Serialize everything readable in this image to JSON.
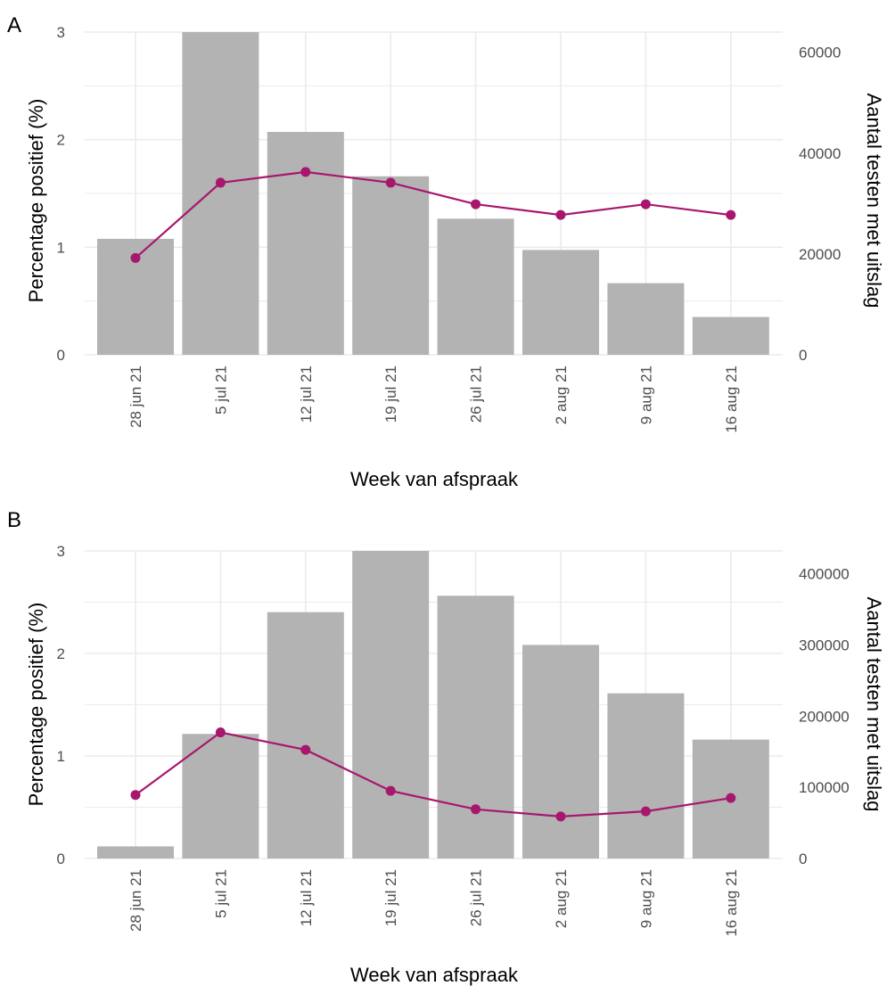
{
  "chart_data": [
    {
      "panel_label": "A",
      "type": "bar+line",
      "categories": [
        "28 jun 21",
        "5 jul 21",
        "12 jul 21",
        "19 jul 21",
        "26 jul 21",
        "2 aug 21",
        "9 aug 21",
        "16 aug 21"
      ],
      "xlabel": "Week van afspraak",
      "ylabel_left": "Percentage positief (%)",
      "ylabel_right": "Aantal testen met uitslag",
      "left_axis": {
        "range": [
          0,
          3
        ],
        "ticks": [
          "0",
          "1",
          "2",
          "3"
        ]
      },
      "right_axis": {
        "range": [
          0,
          64000
        ],
        "ticks": [
          "0",
          "20000",
          "40000",
          "60000"
        ]
      },
      "bars_tests": [
        23000,
        64000,
        44200,
        35400,
        27000,
        20800,
        14200,
        7500
      ],
      "line_percentage_positive": [
        0.9,
        1.6,
        1.7,
        1.6,
        1.4,
        1.3,
        1.4,
        1.3
      ],
      "grid": true,
      "colors": {
        "bar": "#b3b3b3",
        "line": "#a8176e",
        "grid": "#ebebeb"
      }
    },
    {
      "panel_label": "B",
      "type": "bar+line",
      "categories": [
        "28 jun 21",
        "5 jul 21",
        "12 jul 21",
        "19 jul 21",
        "26 jul 21",
        "2 aug 21",
        "9 aug 21",
        "16 aug 21"
      ],
      "xlabel": "Week van afspraak",
      "ylabel_left": "Percentage positief (%)",
      "ylabel_right": "Aantal testen met uitslag",
      "left_axis": {
        "range": [
          0,
          3
        ],
        "ticks": [
          "0",
          "1",
          "2",
          "3"
        ]
      },
      "right_axis": {
        "range": [
          0,
          432000
        ],
        "ticks": [
          "0",
          "100000",
          "200000",
          "300000",
          "400000"
        ]
      },
      "bars_tests": [
        17000,
        175000,
        346000,
        432000,
        369000,
        300000,
        232000,
        167000
      ],
      "line_percentage_positive": [
        0.62,
        1.23,
        1.06,
        0.66,
        0.48,
        0.41,
        0.46,
        0.59
      ],
      "grid": true,
      "colors": {
        "bar": "#b3b3b3",
        "line": "#a8176e",
        "grid": "#ebebeb"
      }
    }
  ]
}
